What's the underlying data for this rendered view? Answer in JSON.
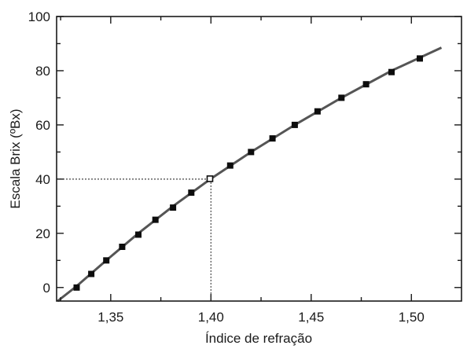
{
  "chart_data": {
    "type": "scatter",
    "xlabel": "Índice de refração",
    "ylabel": "Escala Brix (ºBx)",
    "xlim": [
      1.323,
      1.525
    ],
    "ylim": [
      -5,
      100
    ],
    "x_ticks": [
      1.35,
      1.4,
      1.45,
      1.5
    ],
    "x_tick_labels": [
      "1,35",
      "1,40",
      "1,45",
      "1,50"
    ],
    "y_ticks": [
      0,
      20,
      40,
      60,
      80,
      100
    ],
    "y_tick_labels": [
      "0",
      "20",
      "40",
      "60",
      "80",
      "100"
    ],
    "grid": false,
    "series": [
      {
        "type": "scatter",
        "marker": "square",
        "color": "#0d0d0d",
        "points": [
          {
            "x": 1.333,
            "y": 0
          },
          {
            "x": 1.3403,
            "y": 5
          },
          {
            "x": 1.3478,
            "y": 10
          },
          {
            "x": 1.3557,
            "y": 15
          },
          {
            "x": 1.3638,
            "y": 19.5
          },
          {
            "x": 1.3723,
            "y": 25
          },
          {
            "x": 1.3811,
            "y": 29.5
          },
          {
            "x": 1.3902,
            "y": 35
          },
          {
            "x": 1.3997,
            "y": 40
          },
          {
            "x": 1.4096,
            "y": 45
          },
          {
            "x": 1.42,
            "y": 50
          },
          {
            "x": 1.4307,
            "y": 55
          },
          {
            "x": 1.4418,
            "y": 60
          },
          {
            "x": 1.4532,
            "y": 65
          },
          {
            "x": 1.4651,
            "y": 70
          },
          {
            "x": 1.4774,
            "y": 75
          },
          {
            "x": 1.4901,
            "y": 79.5
          },
          {
            "x": 1.5042,
            "y": 84.5
          }
        ]
      },
      {
        "type": "line",
        "color": "#555555",
        "points": [
          {
            "x": 1.3235,
            "y": -5
          },
          {
            "x": 1.333,
            "y": 0.5
          },
          {
            "x": 1.3478,
            "y": 10
          },
          {
            "x": 1.3638,
            "y": 20
          },
          {
            "x": 1.3811,
            "y": 30
          },
          {
            "x": 1.3997,
            "y": 40
          },
          {
            "x": 1.42,
            "y": 50
          },
          {
            "x": 1.4418,
            "y": 60
          },
          {
            "x": 1.4651,
            "y": 70
          },
          {
            "x": 1.4901,
            "y": 80
          },
          {
            "x": 1.515,
            "y": 88.5
          }
        ]
      }
    ],
    "reference": {
      "x": 1.4,
      "y": 40,
      "style": "dotted"
    }
  }
}
